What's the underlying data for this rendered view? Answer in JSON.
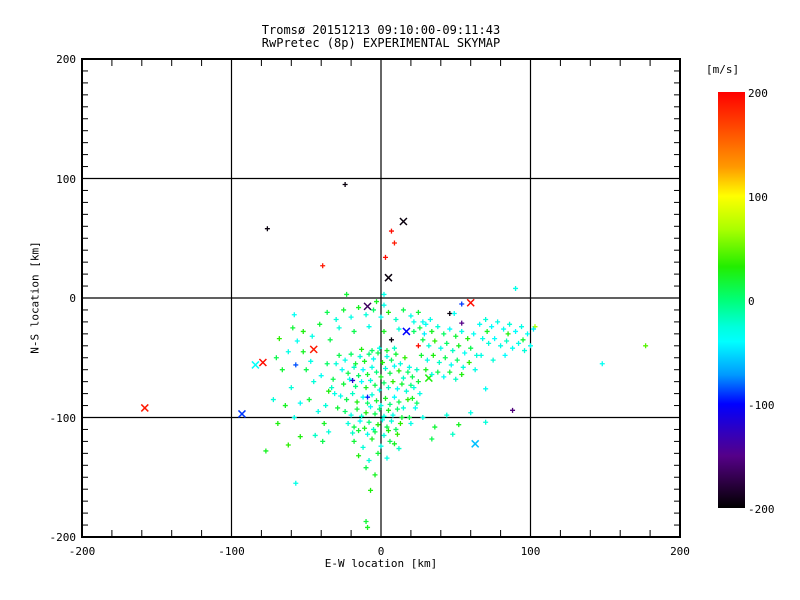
{
  "title": {
    "line1": "Tromsø 20151213 09:10:00-09:11:43",
    "line2": "RwPretec (8p) EXPERIMENTAL SKYMAP"
  },
  "axes": {
    "xlabel": "E-W location [km]",
    "ylabel": "N-S location [km]",
    "xlim": [
      -200,
      200
    ],
    "ylim": [
      -200,
      200
    ],
    "x_tick_values": [
      -200,
      -100,
      0,
      100,
      200
    ],
    "x_tick_labels": [
      "-200",
      "-100",
      "0",
      "100",
      "200"
    ],
    "y_tick_values": [
      -200,
      -100,
      0,
      100,
      200
    ],
    "y_tick_labels": [
      "-200",
      "-100",
      "0",
      "100",
      "200"
    ],
    "x_minor_step": 20,
    "y_minor_step": 10,
    "grid_values": [
      -100,
      0,
      100
    ],
    "axis_color": "#000000"
  },
  "colorbar": {
    "units_label": "[m/s]",
    "tick_values": [
      200,
      100,
      0,
      -100,
      -200
    ],
    "tick_labels": [
      "200",
      "100",
      "0",
      "-100",
      "-200"
    ],
    "min": -200,
    "max": 200,
    "gradient_stops": [
      [
        0.0,
        "#ff0000"
      ],
      [
        0.1,
        "#ff5500"
      ],
      [
        0.18,
        "#ff9900"
      ],
      [
        0.25,
        "#ffff00"
      ],
      [
        0.33,
        "#aaff00"
      ],
      [
        0.42,
        "#22ee00"
      ],
      [
        0.5,
        "#00ff77"
      ],
      [
        0.565,
        "#00ffdd"
      ],
      [
        0.6,
        "#00ffff"
      ],
      [
        0.68,
        "#0099ff"
      ],
      [
        0.75,
        "#0000ff"
      ],
      [
        0.82,
        "#3300bb"
      ],
      [
        0.875,
        "#550088"
      ],
      [
        0.94,
        "#2b0040"
      ],
      [
        1.0,
        "#000000"
      ]
    ]
  },
  "chart_data": {
    "type": "scatter",
    "title": "Tromsø 20151213 09:10:00-09:11:43 / RwPretec (8p) EXPERIMENTAL SKYMAP",
    "xlabel": "E-W location [km]",
    "ylabel": "N-S location [km]",
    "xlim": [
      -200,
      200
    ],
    "ylim": [
      -200,
      200
    ],
    "value_units": "m/s",
    "value_range": [
      -200,
      200
    ],
    "grid": true,
    "legend_position": "right-colorbar",
    "colormap_anchors": [
      [
        200,
        "#ff0000"
      ],
      [
        150,
        "#ff7700"
      ],
      [
        100,
        "#ffff00"
      ],
      [
        60,
        "#aaff00"
      ],
      [
        28,
        "#22ee00"
      ],
      [
        0,
        "#00ff77"
      ],
      [
        -26,
        "#00ffdd"
      ],
      [
        -40,
        "#00ffff"
      ],
      [
        -72,
        "#0099ff"
      ],
      [
        -100,
        "#0000ff"
      ],
      [
        -128,
        "#3300bb"
      ],
      [
        -150,
        "#550088"
      ],
      [
        -176,
        "#2b0040"
      ],
      [
        -200,
        "#000000"
      ]
    ],
    "points": [
      [
        -158,
        -92,
        190,
        "x"
      ],
      [
        -93,
        -97,
        -90,
        "x"
      ],
      [
        -84,
        -56,
        -38,
        "x"
      ],
      [
        -79,
        -54,
        195,
        "x"
      ],
      [
        -45,
        -43,
        190,
        "x"
      ],
      [
        60,
        -4,
        195,
        "x"
      ],
      [
        15,
        64,
        -195,
        "x"
      ],
      [
        5,
        17,
        -195,
        "x"
      ],
      [
        -9,
        -7,
        -165,
        "x"
      ],
      [
        17,
        -28,
        -100,
        "x"
      ],
      [
        32,
        -67,
        25,
        "x"
      ],
      [
        63,
        -122,
        -60,
        "x"
      ],
      [
        -24,
        95,
        -195
      ],
      [
        -76,
        58,
        -195
      ],
      [
        7,
        56,
        195
      ],
      [
        9,
        46,
        190
      ],
      [
        3,
        34,
        195
      ],
      [
        -39,
        27,
        190
      ],
      [
        -23,
        3,
        15
      ],
      [
        2,
        3,
        -30
      ],
      [
        -3,
        -3,
        20
      ],
      [
        2,
        -6,
        -30
      ],
      [
        7,
        -35,
        -195
      ],
      [
        25,
        -40,
        195
      ],
      [
        46,
        -13,
        -195
      ],
      [
        49,
        -13,
        -35
      ],
      [
        54,
        -5,
        -90
      ],
      [
        54,
        -21,
        -150
      ],
      [
        88,
        -94,
        -155
      ],
      [
        177,
        -40,
        40
      ],
      [
        148,
        -55,
        -35
      ],
      [
        70,
        -76,
        -35
      ],
      [
        -19,
        -69,
        -120
      ],
      [
        -9,
        -83,
        -95
      ],
      [
        -57,
        -56,
        -85
      ],
      [
        -58,
        -14,
        -35
      ],
      [
        -68,
        -34,
        30
      ],
      [
        -56,
        -36,
        -35
      ],
      [
        -54,
        -88,
        -35
      ],
      [
        -69,
        -105,
        25
      ],
      [
        -62,
        -123,
        30
      ],
      [
        -54,
        -116,
        25
      ],
      [
        -77,
        -128,
        20
      ],
      [
        5,
        -111,
        25
      ],
      [
        11,
        -114,
        30
      ],
      [
        9,
        -122,
        20
      ],
      [
        20,
        -105,
        -30
      ],
      [
        -7,
        -161,
        25
      ],
      [
        -10,
        -187,
        15
      ],
      [
        -9,
        -192,
        20
      ],
      [
        -57,
        -155,
        -30
      ],
      [
        90,
        8,
        -30
      ],
      [
        103,
        -24,
        60
      ],
      [
        -28,
        -48,
        10
      ],
      [
        -24,
        -52,
        -30
      ],
      [
        -20,
        -47,
        5
      ],
      [
        -17,
        -55,
        15
      ],
      [
        -14,
        -49,
        -25
      ],
      [
        -11,
        -53,
        20
      ],
      [
        -8,
        -47,
        0
      ],
      [
        -5,
        -51,
        -35
      ],
      [
        -2,
        -46,
        10
      ],
      [
        1,
        -54,
        25
      ],
      [
        4,
        -49,
        -30
      ],
      [
        7,
        -52,
        5
      ],
      [
        10,
        -47,
        15
      ],
      [
        13,
        -55,
        -25
      ],
      [
        16,
        -50,
        30
      ],
      [
        -26,
        -60,
        -35
      ],
      [
        -22,
        -63,
        10
      ],
      [
        -18,
        -58,
        -20
      ],
      [
        -15,
        -65,
        5
      ],
      [
        -12,
        -60,
        -40
      ],
      [
        -9,
        -64,
        15
      ],
      [
        -6,
        -58,
        -30
      ],
      [
        -3,
        -62,
        0
      ],
      [
        0,
        -66,
        20
      ],
      [
        3,
        -59,
        -25
      ],
      [
        6,
        -63,
        10
      ],
      [
        9,
        -57,
        -35
      ],
      [
        12,
        -61,
        25
      ],
      [
        15,
        -67,
        -20
      ],
      [
        18,
        -62,
        5
      ],
      [
        -25,
        -72,
        15
      ],
      [
        -21,
        -68,
        -30
      ],
      [
        -17,
        -74,
        0
      ],
      [
        -13,
        -70,
        -40
      ],
      [
        -10,
        -75,
        20
      ],
      [
        -7,
        -69,
        -25
      ],
      [
        -4,
        -73,
        10
      ],
      [
        -1,
        -77,
        -30
      ],
      [
        2,
        -71,
        5
      ],
      [
        5,
        -75,
        -20
      ],
      [
        8,
        -70,
        30
      ],
      [
        11,
        -76,
        -35
      ],
      [
        14,
        -72,
        15
      ],
      [
        17,
        -78,
        -25
      ],
      [
        20,
        -73,
        0
      ],
      [
        -27,
        -82,
        -30
      ],
      [
        -23,
        -85,
        10
      ],
      [
        -19,
        -80,
        -20
      ],
      [
        -16,
        -87,
        25
      ],
      [
        -12,
        -83,
        -35
      ],
      [
        -9,
        -88,
        5
      ],
      [
        -6,
        -81,
        -25
      ],
      [
        -3,
        -86,
        15
      ],
      [
        0,
        -90,
        -30
      ],
      [
        3,
        -84,
        20
      ],
      [
        6,
        -89,
        0
      ],
      [
        9,
        -83,
        -40
      ],
      [
        12,
        -87,
        10
      ],
      [
        15,
        -92,
        -25
      ],
      [
        18,
        -85,
        30
      ],
      [
        -24,
        -95,
        5
      ],
      [
        -20,
        -98,
        -30
      ],
      [
        -16,
        -93,
        15
      ],
      [
        -13,
        -99,
        -20
      ],
      [
        -10,
        -96,
        25
      ],
      [
        -7,
        -91,
        -35
      ],
      [
        -4,
        -97,
        10
      ],
      [
        -1,
        -93,
        0
      ],
      [
        2,
        -99,
        -25
      ],
      [
        5,
        -94,
        20
      ],
      [
        8,
        -98,
        -30
      ],
      [
        11,
        -93,
        5
      ],
      [
        14,
        -100,
        15
      ],
      [
        -22,
        -105,
        -25
      ],
      [
        -18,
        -108,
        10
      ],
      [
        -14,
        -103,
        -35
      ],
      [
        -11,
        -109,
        20
      ],
      [
        -8,
        -104,
        0
      ],
      [
        -5,
        -110,
        -20
      ],
      [
        -2,
        -106,
        25
      ],
      [
        1,
        -102,
        -30
      ],
      [
        4,
        -108,
        10
      ],
      [
        7,
        -103,
        -25
      ],
      [
        10,
        -110,
        5
      ],
      [
        13,
        -105,
        30
      ],
      [
        -19,
        -113,
        -20
      ],
      [
        -15,
        -111,
        15
      ],
      [
        -9,
        -114,
        -30
      ],
      [
        -4,
        -112,
        10
      ],
      [
        2,
        -115,
        -25
      ],
      [
        -6,
        -44,
        5
      ],
      [
        -1,
        -42,
        -30
      ],
      [
        4,
        -44,
        15
      ],
      [
        9,
        -42,
        -20
      ],
      [
        -13,
        -43,
        25
      ],
      [
        -30,
        -55,
        -25
      ],
      [
        -32,
        -68,
        10
      ],
      [
        -31,
        -80,
        -30
      ],
      [
        -29,
        -92,
        15
      ],
      [
        -33,
        -75,
        -20
      ],
      [
        19,
        -58,
        -30
      ],
      [
        21,
        -66,
        10
      ],
      [
        22,
        -75,
        -25
      ],
      [
        21,
        -84,
        20
      ],
      [
        23,
        -92,
        -35
      ],
      [
        19,
        -100,
        10
      ],
      [
        24,
        -60,
        -20
      ],
      [
        25,
        -70,
        15
      ],
      [
        26,
        -80,
        -30
      ],
      [
        24,
        -88,
        5
      ],
      [
        -50,
        -60,
        10
      ],
      [
        -45,
        -70,
        -25
      ],
      [
        -48,
        -85,
        15
      ],
      [
        -42,
        -95,
        -30
      ],
      [
        -38,
        -105,
        20
      ],
      [
        -44,
        -115,
        -20
      ],
      [
        -36,
        -55,
        5
      ],
      [
        -40,
        -65,
        -35
      ],
      [
        -35,
        -78,
        25
      ],
      [
        -37,
        -90,
        -25
      ],
      [
        -34,
        -35,
        10
      ],
      [
        -46,
        -32,
        -30
      ],
      [
        -41,
        -22,
        15
      ],
      [
        -39,
        -120,
        10
      ],
      [
        -35,
        -112,
        -25
      ],
      [
        -52,
        -45,
        20
      ],
      [
        -52,
        -28,
        25
      ],
      [
        -47,
        -53,
        -30
      ],
      [
        22,
        -20,
        -30
      ],
      [
        26,
        -25,
        10
      ],
      [
        30,
        -22,
        -35
      ],
      [
        34,
        -28,
        20
      ],
      [
        38,
        -24,
        -25
      ],
      [
        42,
        -30,
        5
      ],
      [
        46,
        -26,
        -40
      ],
      [
        50,
        -32,
        15
      ],
      [
        54,
        -28,
        -30
      ],
      [
        58,
        -34,
        25
      ],
      [
        62,
        -30,
        -35
      ],
      [
        28,
        -35,
        10
      ],
      [
        32,
        -40,
        -25
      ],
      [
        36,
        -36,
        30
      ],
      [
        40,
        -42,
        -30
      ],
      [
        44,
        -38,
        5
      ],
      [
        48,
        -44,
        -20
      ],
      [
        52,
        -40,
        20
      ],
      [
        56,
        -46,
        -35
      ],
      [
        60,
        -42,
        10
      ],
      [
        64,
        -48,
        -25
      ],
      [
        27,
        -48,
        15
      ],
      [
        31,
        -52,
        -30
      ],
      [
        35,
        -48,
        25
      ],
      [
        39,
        -54,
        -20
      ],
      [
        43,
        -50,
        10
      ],
      [
        47,
        -56,
        -35
      ],
      [
        51,
        -52,
        5
      ],
      [
        55,
        -58,
        -25
      ],
      [
        59,
        -54,
        30
      ],
      [
        63,
        -60,
        -30
      ],
      [
        30,
        -60,
        20
      ],
      [
        34,
        -64,
        -25
      ],
      [
        38,
        -62,
        10
      ],
      [
        42,
        -66,
        -35
      ],
      [
        46,
        -62,
        15
      ],
      [
        50,
        -68,
        -20
      ],
      [
        54,
        -64,
        25
      ],
      [
        29,
        -30,
        -45
      ],
      [
        33,
        -18,
        -30
      ],
      [
        66,
        -22,
        -35
      ],
      [
        70,
        -18,
        -25
      ],
      [
        74,
        -24,
        -40
      ],
      [
        78,
        -20,
        -30
      ],
      [
        82,
        -26,
        -35
      ],
      [
        86,
        -22,
        -25
      ],
      [
        90,
        -28,
        -40
      ],
      [
        94,
        -24,
        -30
      ],
      [
        98,
        -30,
        -35
      ],
      [
        102,
        -26,
        -45
      ],
      [
        68,
        -34,
        -30
      ],
      [
        72,
        -38,
        -25
      ],
      [
        76,
        -34,
        -40
      ],
      [
        80,
        -40,
        -30
      ],
      [
        84,
        -36,
        -20
      ],
      [
        88,
        -42,
        -35
      ],
      [
        92,
        -38,
        -30
      ],
      [
        96,
        -44,
        -25
      ],
      [
        100,
        -40,
        -35
      ],
      [
        67,
        -48,
        -30
      ],
      [
        75,
        -52,
        -25
      ],
      [
        83,
        -48,
        -40
      ],
      [
        71,
        -28,
        20
      ],
      [
        85,
        -30,
        25
      ],
      [
        95,
        -35,
        15
      ],
      [
        -36,
        -12,
        10
      ],
      [
        -30,
        -18,
        -25
      ],
      [
        -25,
        -10,
        15
      ],
      [
        -20,
        -16,
        -30
      ],
      [
        -15,
        -8,
        20
      ],
      [
        -10,
        -14,
        -25
      ],
      [
        -5,
        -10,
        5
      ],
      [
        0,
        -16,
        -35
      ],
      [
        5,
        -12,
        25
      ],
      [
        10,
        -18,
        -20
      ],
      [
        15,
        -10,
        10
      ],
      [
        20,
        -15,
        -30
      ],
      [
        25,
        -12,
        15
      ],
      [
        -28,
        -25,
        -25
      ],
      [
        -18,
        -28,
        10
      ],
      [
        -8,
        -24,
        -30
      ],
      [
        2,
        -28,
        20
      ],
      [
        12,
        -26,
        -25
      ],
      [
        22,
        -28,
        5
      ],
      [
        28,
        -20,
        -35
      ],
      [
        -18,
        -120,
        15
      ],
      [
        -12,
        -125,
        -25
      ],
      [
        -6,
        -118,
        20
      ],
      [
        0,
        -124,
        -30
      ],
      [
        6,
        -120,
        10
      ],
      [
        12,
        -126,
        -20
      ],
      [
        -15,
        -132,
        25
      ],
      [
        -8,
        -136,
        -25
      ],
      [
        -2,
        -130,
        15
      ],
      [
        4,
        -134,
        -30
      ],
      [
        -10,
        -142,
        10
      ],
      [
        -4,
        -148,
        20
      ],
      [
        -62,
        -45,
        -30
      ],
      [
        -66,
        -60,
        15
      ],
      [
        -60,
        -75,
        -25
      ],
      [
        -64,
        -90,
        20
      ],
      [
        -58,
        -100,
        -30
      ],
      [
        -70,
        -50,
        10
      ],
      [
        -72,
        -85,
        -25
      ],
      [
        -59,
        -25,
        15
      ],
      [
        28,
        -100,
        -30
      ],
      [
        36,
        -108,
        15
      ],
      [
        44,
        -98,
        -25
      ],
      [
        52,
        -106,
        20
      ],
      [
        60,
        -96,
        -30
      ],
      [
        70,
        -104,
        -25
      ],
      [
        34,
        -118,
        10
      ],
      [
        48,
        -114,
        -20
      ]
    ]
  }
}
